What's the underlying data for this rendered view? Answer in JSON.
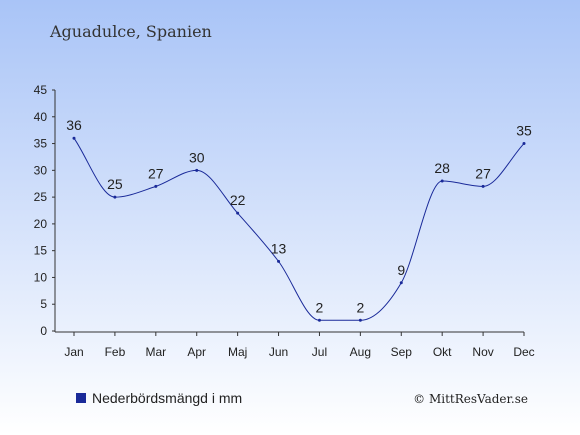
{
  "chart_data": {
    "type": "line",
    "title": "Aguadulce, Spanien",
    "categories": [
      "Jan",
      "Feb",
      "Mar",
      "Apr",
      "Maj",
      "Jun",
      "Jul",
      "Aug",
      "Sep",
      "Okt",
      "Nov",
      "Dec"
    ],
    "series": [
      {
        "name": "Nederbördsmängd i mm",
        "values": [
          36,
          25,
          27,
          30,
          22,
          13,
          2,
          2,
          9,
          28,
          27,
          35
        ],
        "color": "#1a2a99"
      }
    ],
    "ylim": [
      0,
      45
    ],
    "yticks": [
      0,
      5,
      10,
      15,
      20,
      25,
      30,
      35,
      40,
      45
    ],
    "grid": false,
    "legend": "bottom-left",
    "background_gradient": [
      "#a9c4f7",
      "#ffffff"
    ]
  },
  "credit": "© MittResVader.se"
}
